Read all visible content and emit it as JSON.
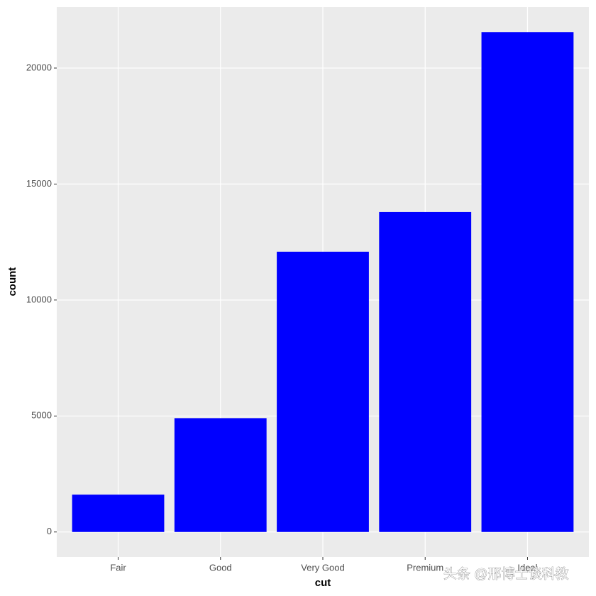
{
  "chart_data": {
    "type": "bar",
    "x_label": "cut",
    "y_label": "count",
    "categories": [
      "Fair",
      "Good",
      "Very Good",
      "Premium",
      "Ideal"
    ],
    "values": [
      1610,
      4906,
      12082,
      13791,
      21551
    ],
    "color": "#0000ff",
    "ylim": [
      -1078,
      22629
    ],
    "yticks": [
      0,
      5000,
      10000,
      15000,
      20000
    ],
    "grid": true
  },
  "watermark": "头条 @邢博士谈科教"
}
